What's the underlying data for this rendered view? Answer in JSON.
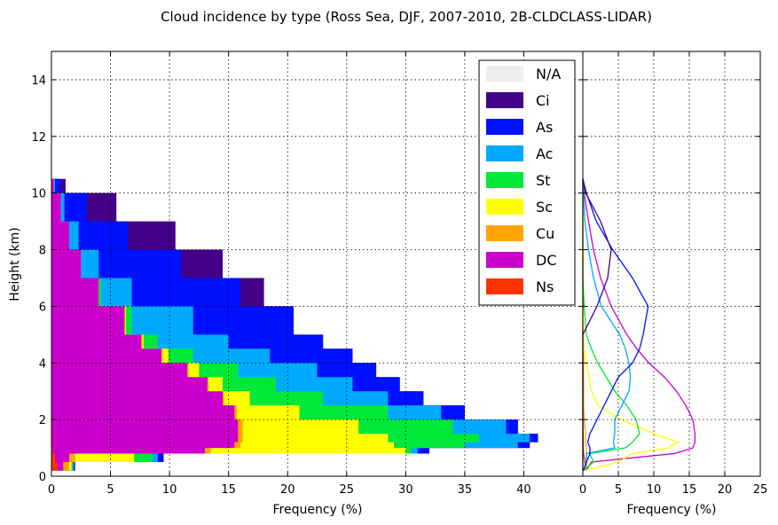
{
  "chart_data": {
    "type": "area",
    "title": "Cloud incidence by type (Ross Sea, DJF, 2007-2010, 2B-CLDCLASS-LIDAR)",
    "legend_placement": "top-right of left panel",
    "grid": true,
    "panels": [
      {
        "name": "stacked",
        "type": "area",
        "orientation": "horizontal",
        "xlabel": "Frequency (%)",
        "ylabel": "Height (km)",
        "xlim": [
          0,
          45
        ],
        "ylim": [
          0,
          15
        ],
        "xticks": [
          "0",
          "5",
          "10",
          "15",
          "20",
          "25",
          "30",
          "35",
          "40"
        ],
        "yticks": [
          "0",
          "2",
          "4",
          "6",
          "8",
          "10",
          "12",
          "14"
        ],
        "heights_km": [
          0.2,
          0.5,
          0.8,
          1.0,
          1.2,
          1.5,
          2.0,
          2.5,
          3.0,
          3.5,
          4.0,
          4.5,
          5.0,
          6.0,
          7.0,
          8.0,
          9.0,
          10.0,
          10.5
        ],
        "series_cumulative": [
          {
            "name": "Ns",
            "color": "#ff3300",
            "values": [
              0.5,
              0.3,
              0.1,
              0.05,
              0.05,
              0.05,
              0,
              0,
              0,
              0,
              0,
              0,
              0,
              0,
              0,
              0,
              0,
              0,
              0
            ]
          },
          {
            "name": "DC",
            "color": "#cc00cc",
            "values": [
              1.0,
              1.5,
              13.0,
              15.5,
              15.8,
              15.8,
              15.5,
              14.5,
              13.2,
              11.5,
              9.3,
              7.6,
              6.2,
              4.0,
              2.5,
              1.5,
              0.8,
              0.2,
              0
            ]
          },
          {
            "name": "Cu",
            "color": "#ffa500",
            "values": [
              1.5,
              2.0,
              13.5,
              16.0,
              16.2,
              16.2,
              15.7,
              14.6,
              13.3,
              11.6,
              9.4,
              7.7,
              6.2,
              4.0,
              2.5,
              1.5,
              0.8,
              0.2,
              0
            ]
          },
          {
            "name": "Sc",
            "color": "#ffff00",
            "values": [
              1.7,
              7.0,
              30.0,
              29.0,
              28.5,
              26.0,
              21.0,
              16.8,
              14.5,
              12.5,
              9.9,
              7.8,
              6.3,
              4.0,
              2.5,
              1.5,
              0.8,
              0.2,
              0
            ]
          },
          {
            "name": "St",
            "color": "#00e838",
            "values": [
              1.8,
              8.5,
              30.5,
              35.0,
              36.2,
              34.0,
              28.5,
              23.0,
              19.0,
              15.8,
              12.0,
              9.0,
              6.8,
              4.2,
              2.5,
              1.5,
              0.8,
              0.2,
              0
            ]
          },
          {
            "name": "Ac",
            "color": "#00aaff",
            "values": [
              1.9,
              9.0,
              31.0,
              39.5,
              40.5,
              38.5,
              33.0,
              28.5,
              25.5,
              22.5,
              18.5,
              15.0,
              12.0,
              6.8,
              4.0,
              2.3,
              1.1,
              0.3,
              0
            ]
          },
          {
            "name": "As",
            "color": "#0011ff",
            "values": [
              2.0,
              9.5,
              32.0,
              40.5,
              41.2,
              39.5,
              35.0,
              31.5,
              29.5,
              27.5,
              25.5,
              23.0,
              20.5,
              16.0,
              11.0,
              6.5,
              3.0,
              0.8,
              0
            ]
          },
          {
            "name": "Ci",
            "color": "#440088",
            "values": [
              2.0,
              9.5,
              32.0,
              40.5,
              41.2,
              39.5,
              35.0,
              31.5,
              29.5,
              27.5,
              25.5,
              23.0,
              20.5,
              18.0,
              14.5,
              10.5,
              5.5,
              1.2,
              0
            ]
          },
          {
            "name": "N/A",
            "color": "#eeeeee",
            "values": [
              2.0,
              9.5,
              32.0,
              40.5,
              41.2,
              39.5,
              35.0,
              31.5,
              29.5,
              27.5,
              25.5,
              23.0,
              20.5,
              18.0,
              14.5,
              10.5,
              5.5,
              1.2,
              0
            ]
          }
        ]
      },
      {
        "name": "per-type",
        "type": "line",
        "orientation": "horizontal",
        "xlabel": "Frequency (%)",
        "ylabel": "",
        "xlim": [
          0,
          25
        ],
        "ylim": [
          0,
          15
        ],
        "xticks": [
          "0",
          "5",
          "10",
          "15",
          "20",
          "25"
        ],
        "heights_km": [
          0.2,
          0.5,
          0.8,
          1.0,
          1.2,
          1.5,
          2.0,
          2.5,
          3.0,
          3.5,
          4.0,
          4.5,
          5.0,
          6.0,
          7.0,
          8.0,
          9.0,
          10.0,
          10.5
        ],
        "series": [
          {
            "name": "Ns",
            "color": "#ff3300",
            "values": [
              0.5,
              0.3,
              0.1,
              0.05,
              0.05,
              0.05,
              0,
              0,
              0,
              0,
              0,
              0,
              0,
              0,
              0,
              0,
              0,
              0,
              0
            ]
          },
          {
            "name": "DC",
            "color": "#cc00cc",
            "values": [
              0.5,
              1.2,
              12.9,
              15.5,
              15.8,
              15.8,
              15.5,
              14.5,
              13.2,
              11.5,
              9.3,
              7.6,
              6.2,
              4.0,
              2.5,
              1.5,
              0.8,
              0.2,
              0
            ]
          },
          {
            "name": "Cu",
            "color": "#ffa500",
            "values": [
              0.5,
              0.5,
              0.5,
              0.5,
              0.4,
              0.4,
              0.2,
              0.1,
              0.1,
              0.1,
              0.1,
              0.1,
              0,
              0,
              0,
              0,
              0,
              0,
              0
            ]
          },
          {
            "name": "Sc",
            "color": "#ffff00",
            "values": [
              0.2,
              5.0,
              7.0,
              12.0,
              13.5,
              10.0,
              5.3,
              2.2,
              1.2,
              0.9,
              0.5,
              0.1,
              0.1,
              0,
              0,
              0,
              0,
              0,
              0
            ]
          },
          {
            "name": "St",
            "color": "#00e838",
            "values": [
              0.1,
              1.5,
              1.0,
              6.0,
              7.0,
              8.0,
              7.5,
              6.2,
              4.5,
              3.3,
              2.1,
              1.2,
              0.5,
              0.2,
              0,
              0,
              0,
              0,
              0
            ]
          },
          {
            "name": "Ac",
            "color": "#00aaff",
            "values": [
              0.1,
              0.5,
              0.5,
              4.5,
              4.3,
              4.5,
              4.5,
              5.5,
              6.5,
              6.7,
              6.5,
              6.0,
              5.2,
              2.6,
              1.5,
              0.8,
              0.3,
              0.1,
              0
            ]
          },
          {
            "name": "As",
            "color": "#0011ff",
            "values": [
              0.1,
              0.5,
              1.0,
              1.0,
              0.7,
              1.0,
              2.0,
              3.0,
              4.0,
              5.0,
              7.0,
              8.0,
              8.5,
              9.2,
              7.0,
              4.2,
              1.9,
              0.5,
              0
            ]
          },
          {
            "name": "Ci",
            "color": "#440088",
            "values": [
              0,
              0,
              0,
              0,
              0,
              0,
              0,
              0,
              0,
              0,
              0,
              0,
              0,
              2.0,
              3.5,
              4.0,
              2.5,
              0.4,
              0
            ]
          }
        ]
      }
    ],
    "legend": {
      "entries": [
        {
          "label": "N/A",
          "color": "#eeeeee"
        },
        {
          "label": "Ci",
          "color": "#440088"
        },
        {
          "label": "As",
          "color": "#0011ff"
        },
        {
          "label": "Ac",
          "color": "#00aaff"
        },
        {
          "label": "St",
          "color": "#00e838"
        },
        {
          "label": "Sc",
          "color": "#ffff00"
        },
        {
          "label": "Cu",
          "color": "#ffa500"
        },
        {
          "label": "DC",
          "color": "#cc00cc"
        },
        {
          "label": "Ns",
          "color": "#ff3300"
        }
      ]
    }
  }
}
